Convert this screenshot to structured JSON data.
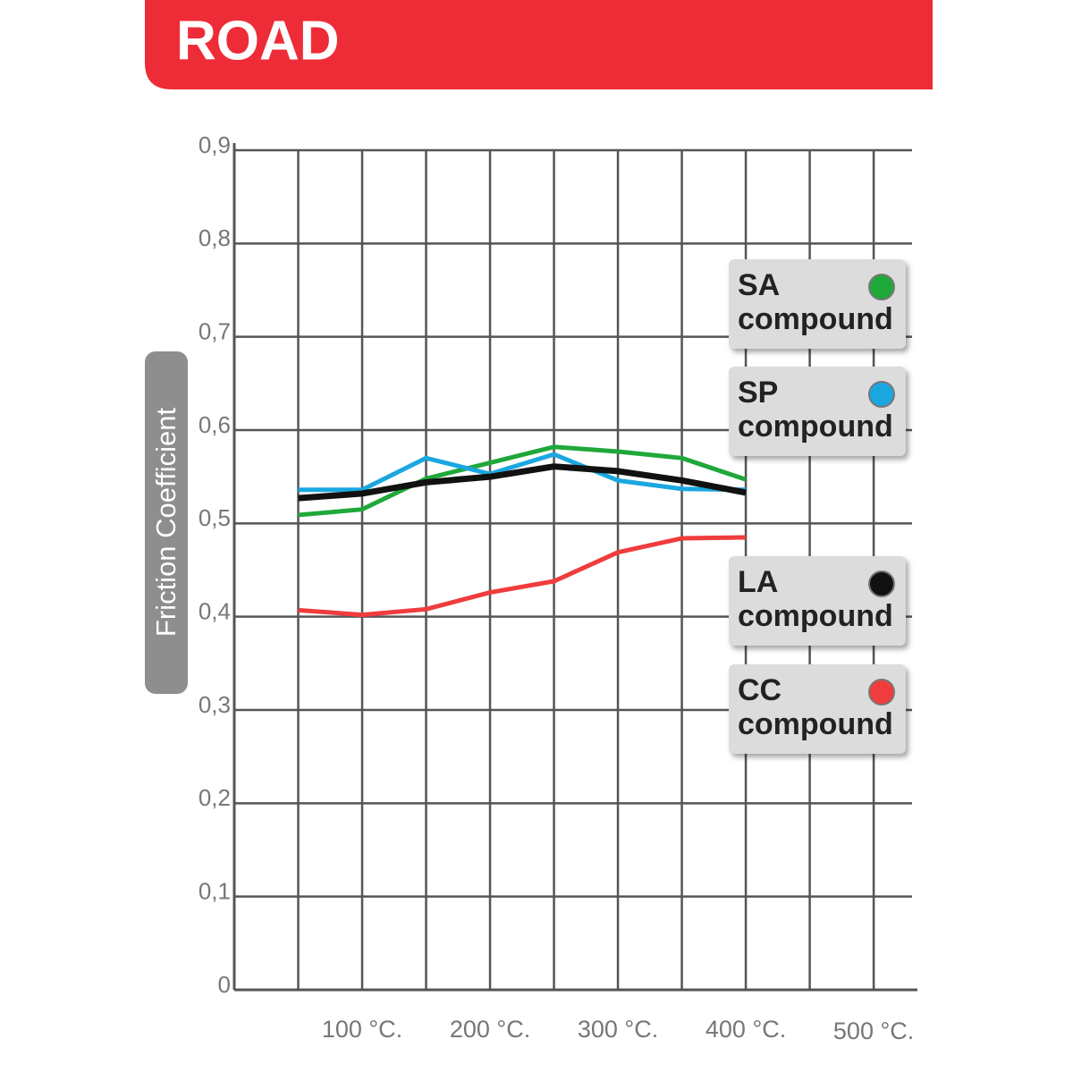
{
  "header": {
    "title": "ROAD"
  },
  "chart_data": {
    "type": "line",
    "y_label": "Friction Coefficient",
    "x": [
      50,
      100,
      150,
      200,
      250,
      300,
      350,
      400
    ],
    "series": [
      {
        "name": "SA compound",
        "color": "#1fa83a",
        "values": [
          0.509,
          0.515,
          0.548,
          0.565,
          0.582,
          0.577,
          0.57,
          0.547
        ]
      },
      {
        "name": "SP compound",
        "color": "#1aa7e0",
        "values": [
          0.536,
          0.536,
          0.57,
          0.553,
          0.574,
          0.546,
          0.537,
          0.536
        ]
      },
      {
        "name": "LA compound",
        "color": "#111111",
        "values": [
          0.527,
          0.532,
          0.544,
          0.55,
          0.561,
          0.556,
          0.546,
          0.533
        ]
      },
      {
        "name": "CC compound",
        "color": "#f03c3c",
        "values": [
          0.407,
          0.402,
          0.408,
          0.426,
          0.438,
          0.469,
          0.484,
          0.485
        ]
      }
    ],
    "xlim": [
      0,
      530
    ],
    "xticks": [
      {
        "value": 100,
        "label": "100 °C."
      },
      {
        "value": 200,
        "label": "200 °C."
      },
      {
        "value": 300,
        "label": "300 °C."
      },
      {
        "value": 400,
        "label": "400 °C."
      },
      {
        "value": 500,
        "label": "500 °C."
      }
    ],
    "minor_xticks": [
      50,
      150,
      250,
      350,
      450
    ],
    "ylim": [
      0,
      0.9
    ],
    "yticks": [
      0,
      {
        "value": 0.1,
        "label": "0,1"
      },
      {
        "value": 0.2,
        "label": "0,2"
      },
      {
        "value": 0.3,
        "label": "0,3"
      },
      {
        "value": 0.4,
        "label": "0,4"
      },
      {
        "value": 0.5,
        "label": "0,5"
      },
      {
        "value": 0.6,
        "label": "0,6"
      },
      {
        "value": 0.7,
        "label": "0,7"
      },
      {
        "value": 0.8,
        "label": "0,8"
      },
      {
        "value": 0.9,
        "label": "0,9"
      }
    ],
    "grid": true
  }
}
